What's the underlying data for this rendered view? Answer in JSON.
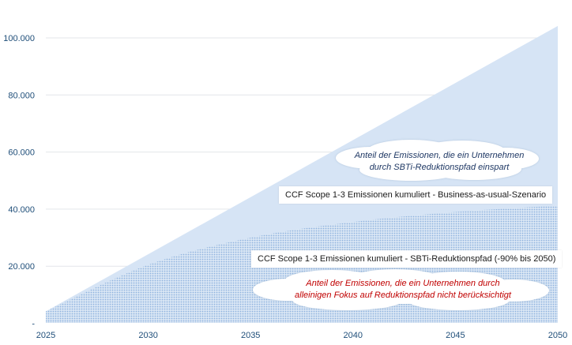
{
  "chart_data": {
    "type": "area",
    "x": [
      2025,
      2030,
      2035,
      2040,
      2045,
      2050
    ],
    "xticks": [
      "2025",
      "2030",
      "2035",
      "2040",
      "2045",
      "2050"
    ],
    "yticks": [
      {
        "value": 0,
        "label": "-"
      },
      {
        "value": 20000,
        "label": "20.000"
      },
      {
        "value": 40000,
        "label": "40.000"
      },
      {
        "value": 60000,
        "label": "60.000"
      },
      {
        "value": 80000,
        "label": "80.000"
      },
      {
        "value": 100000,
        "label": "100.000"
      }
    ],
    "ylim": [
      0,
      100000
    ],
    "xlim": [
      2025,
      2050
    ],
    "grid": true,
    "series": [
      {
        "name": "CCF Scope 1-3 Emissionen kumuliert - Business-as-usual-Szenario",
        "color": "#d6e4f5",
        "values": [
          4200,
          24200,
          44200,
          64200,
          84200,
          104200
        ]
      },
      {
        "name": "CCF Scope 1-3 Emissionen kumuliert - SBTi-Reduktionspfad (-90% bis 2050)",
        "color": "#9bbde3",
        "pattern": "dotted",
        "values": [
          4200,
          20500,
          30000,
          35500,
          39000,
          41200
        ]
      }
    ],
    "annotations": [
      "Anteil der Emissionen, die ein Unternehmen durch SBTi-Reduktionspfad einspart",
      "Anteil der Emissionen, die ein Unternehmen durch alleinigen Fokus auf Reduktionspfad nicht berücksichtigt"
    ]
  },
  "labels": {
    "legend_bau": "CCF Scope 1-3 Emissionen kumuliert - Business-as-usual-Szenario",
    "legend_sbti": "CCF Scope 1-3 Emissionen kumuliert - SBTi-Reduktionspfad (-90% bis 2050)",
    "cloud_top_line1": "Anteil der Emissionen, die ein Unternehmen",
    "cloud_top_line2": "durch SBTi-Reduktionspfad einspart",
    "cloud_bottom_line1": "Anteil der Emissionen, die ein Unternehmen durch",
    "cloud_bottom_line2": "alleinigen Fokus auf Reduktionspfad nicht berücksichtigt"
  },
  "colors": {
    "axis_text": "#1f4e79",
    "bau_fill": "#d6e4f5",
    "sbti_dots": "#9bbde3",
    "cloud_top_text": "#1f3864",
    "cloud_bottom_text": "#c00000"
  }
}
